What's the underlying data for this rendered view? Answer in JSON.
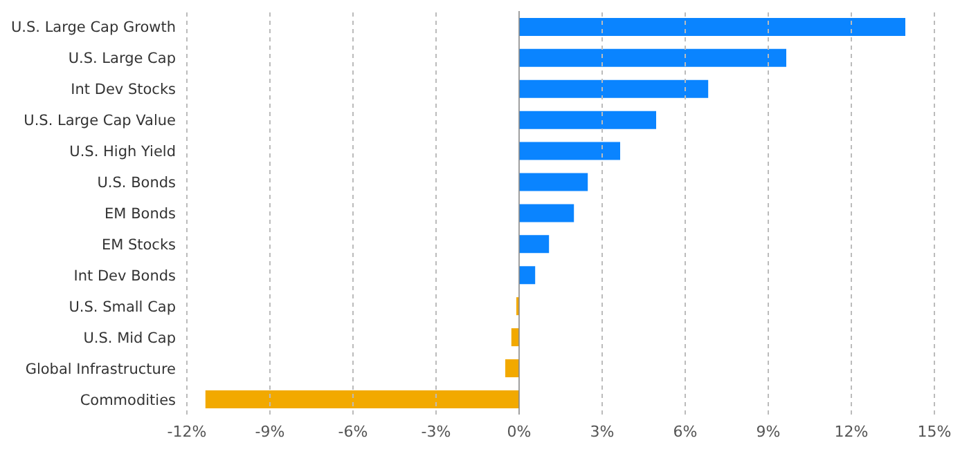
{
  "chart_data": {
    "type": "bar",
    "orientation": "horizontal",
    "categories": [
      "U.S. Large Cap Growth",
      "U.S. Large Cap",
      "Int Dev Stocks",
      "U.S. Large Cap Value",
      "U.S. High Yield",
      "U.S. Bonds",
      "EM Bonds",
      "EM Stocks",
      "Int Dev Bonds",
      "U.S. Small Cap",
      "U.S. Mid Cap",
      "Global Infrastructure",
      "Commodities"
    ],
    "values": [
      13.95,
      9.65,
      6.83,
      4.95,
      3.65,
      2.48,
      1.98,
      1.08,
      0.58,
      -0.1,
      -0.28,
      -0.5,
      -11.33
    ],
    "colors": [
      "#0a84ff",
      "#0a84ff",
      "#0a84ff",
      "#0a84ff",
      "#0a84ff",
      "#0a84ff",
      "#0a84ff",
      "#0a84ff",
      "#0a84ff",
      "#f2a900",
      "#f2a900",
      "#f2a900",
      "#f2a900"
    ],
    "xlim": [
      -12,
      15
    ],
    "xticks": [
      {
        "value": -12,
        "label": "-12%"
      },
      {
        "value": -9,
        "label": "-9%"
      },
      {
        "value": -6,
        "label": "-6%"
      },
      {
        "value": -3,
        "label": "-3%"
      },
      {
        "value": 0,
        "label": "0%"
      },
      {
        "value": 3,
        "label": "3%"
      },
      {
        "value": 6,
        "label": "6%"
      },
      {
        "value": 9,
        "label": "9%"
      },
      {
        "value": 12,
        "label": "12%"
      },
      {
        "value": 15,
        "label": "15%"
      }
    ],
    "grid": "x"
  }
}
